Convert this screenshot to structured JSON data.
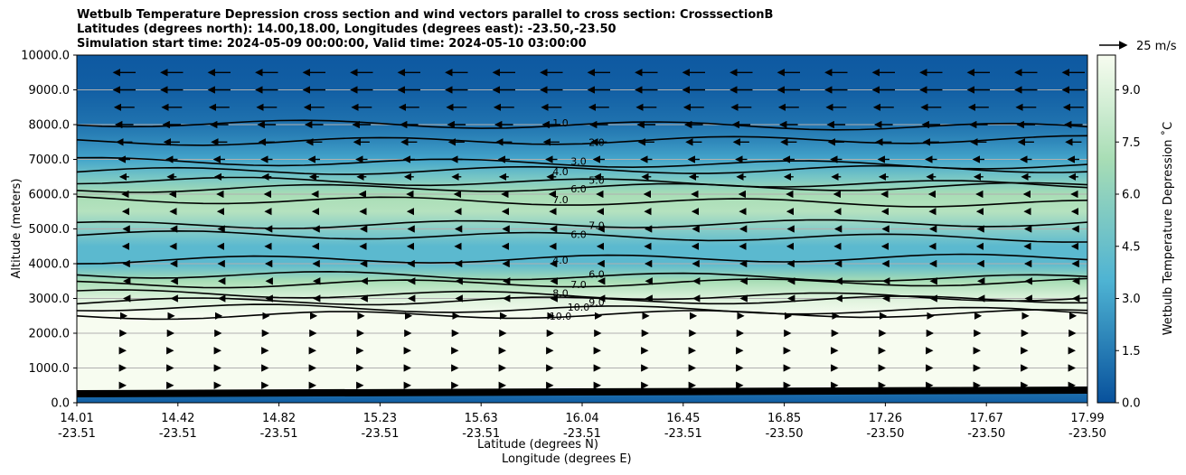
{
  "title": {
    "line1": "Wetbulb Temperature Depression cross section and wind vectors parallel to cross section: CrosssectionB",
    "line2": "Latitudes (degrees north): 14.00,18.00, Longitudes (degrees east): -23.50,-23.50",
    "line3": "Simulation start time: 2024-05-09 00:00:00, Valid time: 2024-05-10 03:00:00"
  },
  "colors": {
    "low": "#08519c",
    "mid": "#4eb3d3",
    "high": "#a8ddb5",
    "top": "#f7fcf0",
    "contour": "#000000",
    "grid": "#b0b0b0"
  },
  "chart_data": {
    "type": "heatmap",
    "xlabel": "Latitude (degrees N)",
    "xlabel2": "Longitude (degrees E)",
    "ylabel": "Altitude (meters)",
    "ylim": [
      0,
      10000
    ],
    "yticks": [
      "0.0",
      "1000.0",
      "2000.0",
      "3000.0",
      "4000.0",
      "5000.0",
      "6000.0",
      "7000.0",
      "8000.0",
      "9000.0",
      "10000.0"
    ],
    "xticks": [
      {
        "lat": "14.01",
        "lon": "-23.51"
      },
      {
        "lat": "14.42",
        "lon": "-23.51"
      },
      {
        "lat": "14.82",
        "lon": "-23.51"
      },
      {
        "lat": "15.23",
        "lon": "-23.51"
      },
      {
        "lat": "15.63",
        "lon": "-23.51"
      },
      {
        "lat": "16.04",
        "lon": "-23.51"
      },
      {
        "lat": "16.45",
        "lon": "-23.51"
      },
      {
        "lat": "16.85",
        "lon": "-23.50"
      },
      {
        "lat": "17.26",
        "lon": "-23.50"
      },
      {
        "lat": "17.67",
        "lon": "-23.50"
      },
      {
        "lat": "17.99",
        "lon": "-23.50"
      }
    ],
    "colorbar": {
      "label": "Wetbulb Temperature Depression ˚C",
      "range": [
        0,
        10
      ],
      "ticks": [
        "0.0",
        "1.5",
        "3.0",
        "4.5",
        "6.0",
        "7.5",
        "9.0"
      ]
    },
    "quiver_key": "25 m/s",
    "profile": [
      {
        "alt": 0,
        "value": 0.5
      },
      {
        "alt": 250,
        "value": 1.0
      },
      {
        "alt": 350,
        "value": 10.0
      },
      {
        "alt": 2500,
        "value": 10.0
      },
      {
        "alt": 3000,
        "value": 9.0
      },
      {
        "alt": 3500,
        "value": 7.0
      },
      {
        "alt": 4000,
        "value": 4.0
      },
      {
        "alt": 4500,
        "value": 4.0
      },
      {
        "alt": 5500,
        "value": 7.5
      },
      {
        "alt": 6000,
        "value": 7.0
      },
      {
        "alt": 6500,
        "value": 5.0
      },
      {
        "alt": 7000,
        "value": 3.0
      },
      {
        "alt": 7500,
        "value": 2.0
      },
      {
        "alt": 8000,
        "value": 1.2
      },
      {
        "alt": 9000,
        "value": 0.5
      },
      {
        "alt": 10000,
        "value": 0.3
      }
    ],
    "contours": [
      {
        "label": "10.0",
        "alt": 2500
      },
      {
        "label": "10.0",
        "alt": 2750
      },
      {
        "label": "9.0",
        "alt": 2900
      },
      {
        "label": "8.0",
        "alt": 3150
      },
      {
        "label": "7.0",
        "alt": 3400
      },
      {
        "label": "6.0",
        "alt": 3700
      },
      {
        "label": "4.0",
        "alt": 4100
      },
      {
        "label": "6.0",
        "alt": 4850
      },
      {
        "label": "7.0",
        "alt": 5100
      },
      {
        "label": "7.0",
        "alt": 5850
      },
      {
        "label": "6.0",
        "alt": 6150
      },
      {
        "label": "5.0",
        "alt": 6400
      },
      {
        "label": "4.0",
        "alt": 6650
      },
      {
        "label": "3.0",
        "alt": 6950
      },
      {
        "label": "2.0",
        "alt": 7500
      },
      {
        "label": "1.0",
        "alt": 8050
      }
    ],
    "winds": [
      {
        "alt": 9500,
        "u": -20
      },
      {
        "alt": 9000,
        "u": -20
      },
      {
        "alt": 8500,
        "u": -18
      },
      {
        "alt": 8000,
        "u": -16
      },
      {
        "alt": 7500,
        "u": -14
      },
      {
        "alt": 7000,
        "u": -10
      },
      {
        "alt": 6500,
        "u": -8
      },
      {
        "alt": 6000,
        "u": -4
      },
      {
        "alt": 5500,
        "u": -3
      },
      {
        "alt": 5000,
        "u": -2
      },
      {
        "alt": 4500,
        "u": -3
      },
      {
        "alt": 4000,
        "u": -2
      },
      {
        "alt": 3500,
        "u": -1
      },
      {
        "alt": 3000,
        "u": -1
      },
      {
        "alt": 2500,
        "u": 3
      },
      {
        "alt": 2000,
        "u": 2
      },
      {
        "alt": 1500,
        "u": 1
      },
      {
        "alt": 1000,
        "u": 1
      },
      {
        "alt": 500,
        "u": 1
      }
    ]
  }
}
